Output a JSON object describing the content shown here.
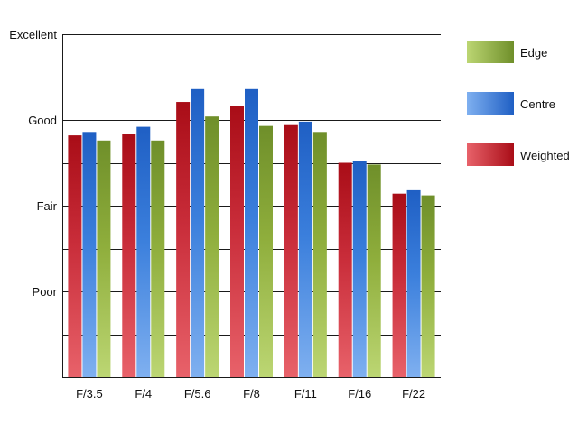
{
  "chart_data": {
    "type": "bar",
    "categories": [
      "F/3.5",
      "F/4",
      "F/5.6",
      "F/8",
      "F/11",
      "F/16",
      "F/22"
    ],
    "y_tick_labels": [
      "Poor",
      "Fair",
      "Good",
      "Excellent"
    ],
    "ylim": [
      0,
      4
    ],
    "grid": true,
    "legend_position": "right",
    "series": [
      {
        "name": "Weighted",
        "values": [
          2.82,
          2.84,
          3.21,
          3.16,
          2.94,
          2.5,
          2.14
        ],
        "color": "#c0141e"
      },
      {
        "name": "Centre",
        "values": [
          2.86,
          2.92,
          3.36,
          3.36,
          2.98,
          2.52,
          2.18
        ],
        "color": "#2e70d2"
      },
      {
        "name": "Edge",
        "values": [
          2.76,
          2.76,
          3.04,
          2.93,
          2.86,
          2.48,
          2.12
        ],
        "color": "#7a9a2e"
      }
    ],
    "legend_order": [
      "Edge",
      "Centre",
      "Weighted"
    ]
  }
}
